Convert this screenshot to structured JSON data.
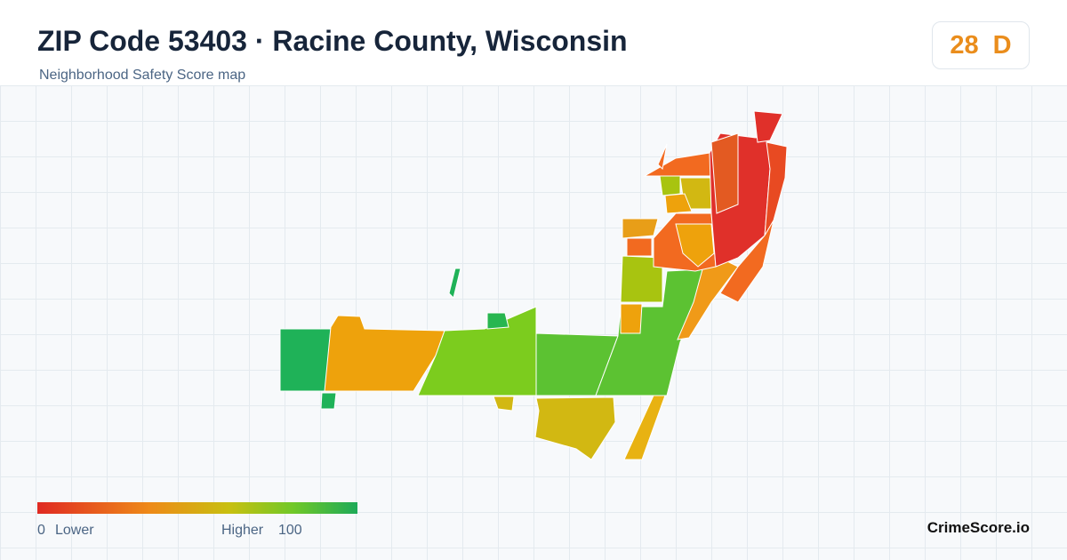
{
  "header": {
    "title": "ZIP Code 53403 · Racine County, Wisconsin",
    "subtitle": "Neighborhood Safety Score map"
  },
  "score": {
    "value": 28,
    "grade": "D"
  },
  "legend": {
    "min": 0,
    "min_label": "Lower",
    "max_label": "Higher",
    "max": 100
  },
  "brand": "CrimeScore.io"
}
